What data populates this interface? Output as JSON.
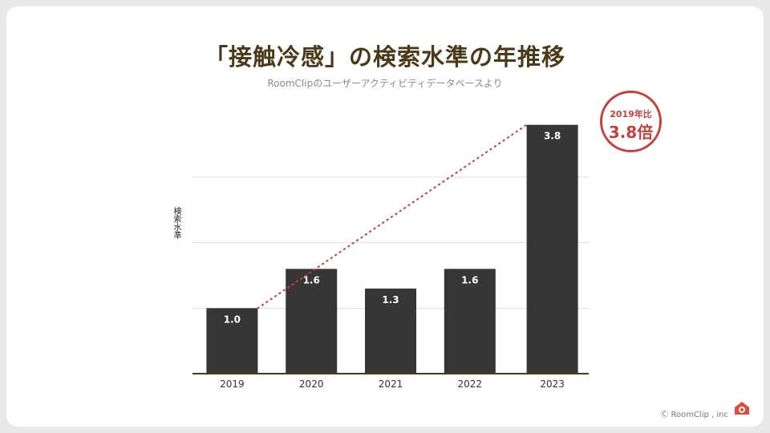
{
  "slide": {
    "title": "「接触冷感」の検索水準の年推移",
    "subtitle": "RoomClipのユーザーアクティビティデータベースより",
    "footer": "Ⓒ RoomClip , inc",
    "logo_icon": "roomclip-house-logo"
  },
  "badge": {
    "top": "2019年比",
    "value": "3.8倍",
    "color": "#c8403e"
  },
  "chart_data": {
    "type": "bar",
    "title": "「接触冷感」の検索水準の年推移",
    "subtitle": "RoomClipのユーザーアクティビティデータベースより",
    "categories": [
      "2019",
      "2020",
      "2021",
      "2022",
      "2023"
    ],
    "values": [
      1.0,
      1.6,
      1.3,
      1.6,
      3.8
    ],
    "value_labels": [
      "1.0",
      "1.6",
      "1.3",
      "1.6",
      "3.8"
    ],
    "xlabel": "",
    "ylabel": "検索水準",
    "ylim": [
      0,
      4
    ],
    "grid": true,
    "bar_color": "#383634",
    "trend_line": {
      "from": "2019",
      "to": "2023",
      "style": "dotted",
      "color": "#c8403e"
    }
  }
}
